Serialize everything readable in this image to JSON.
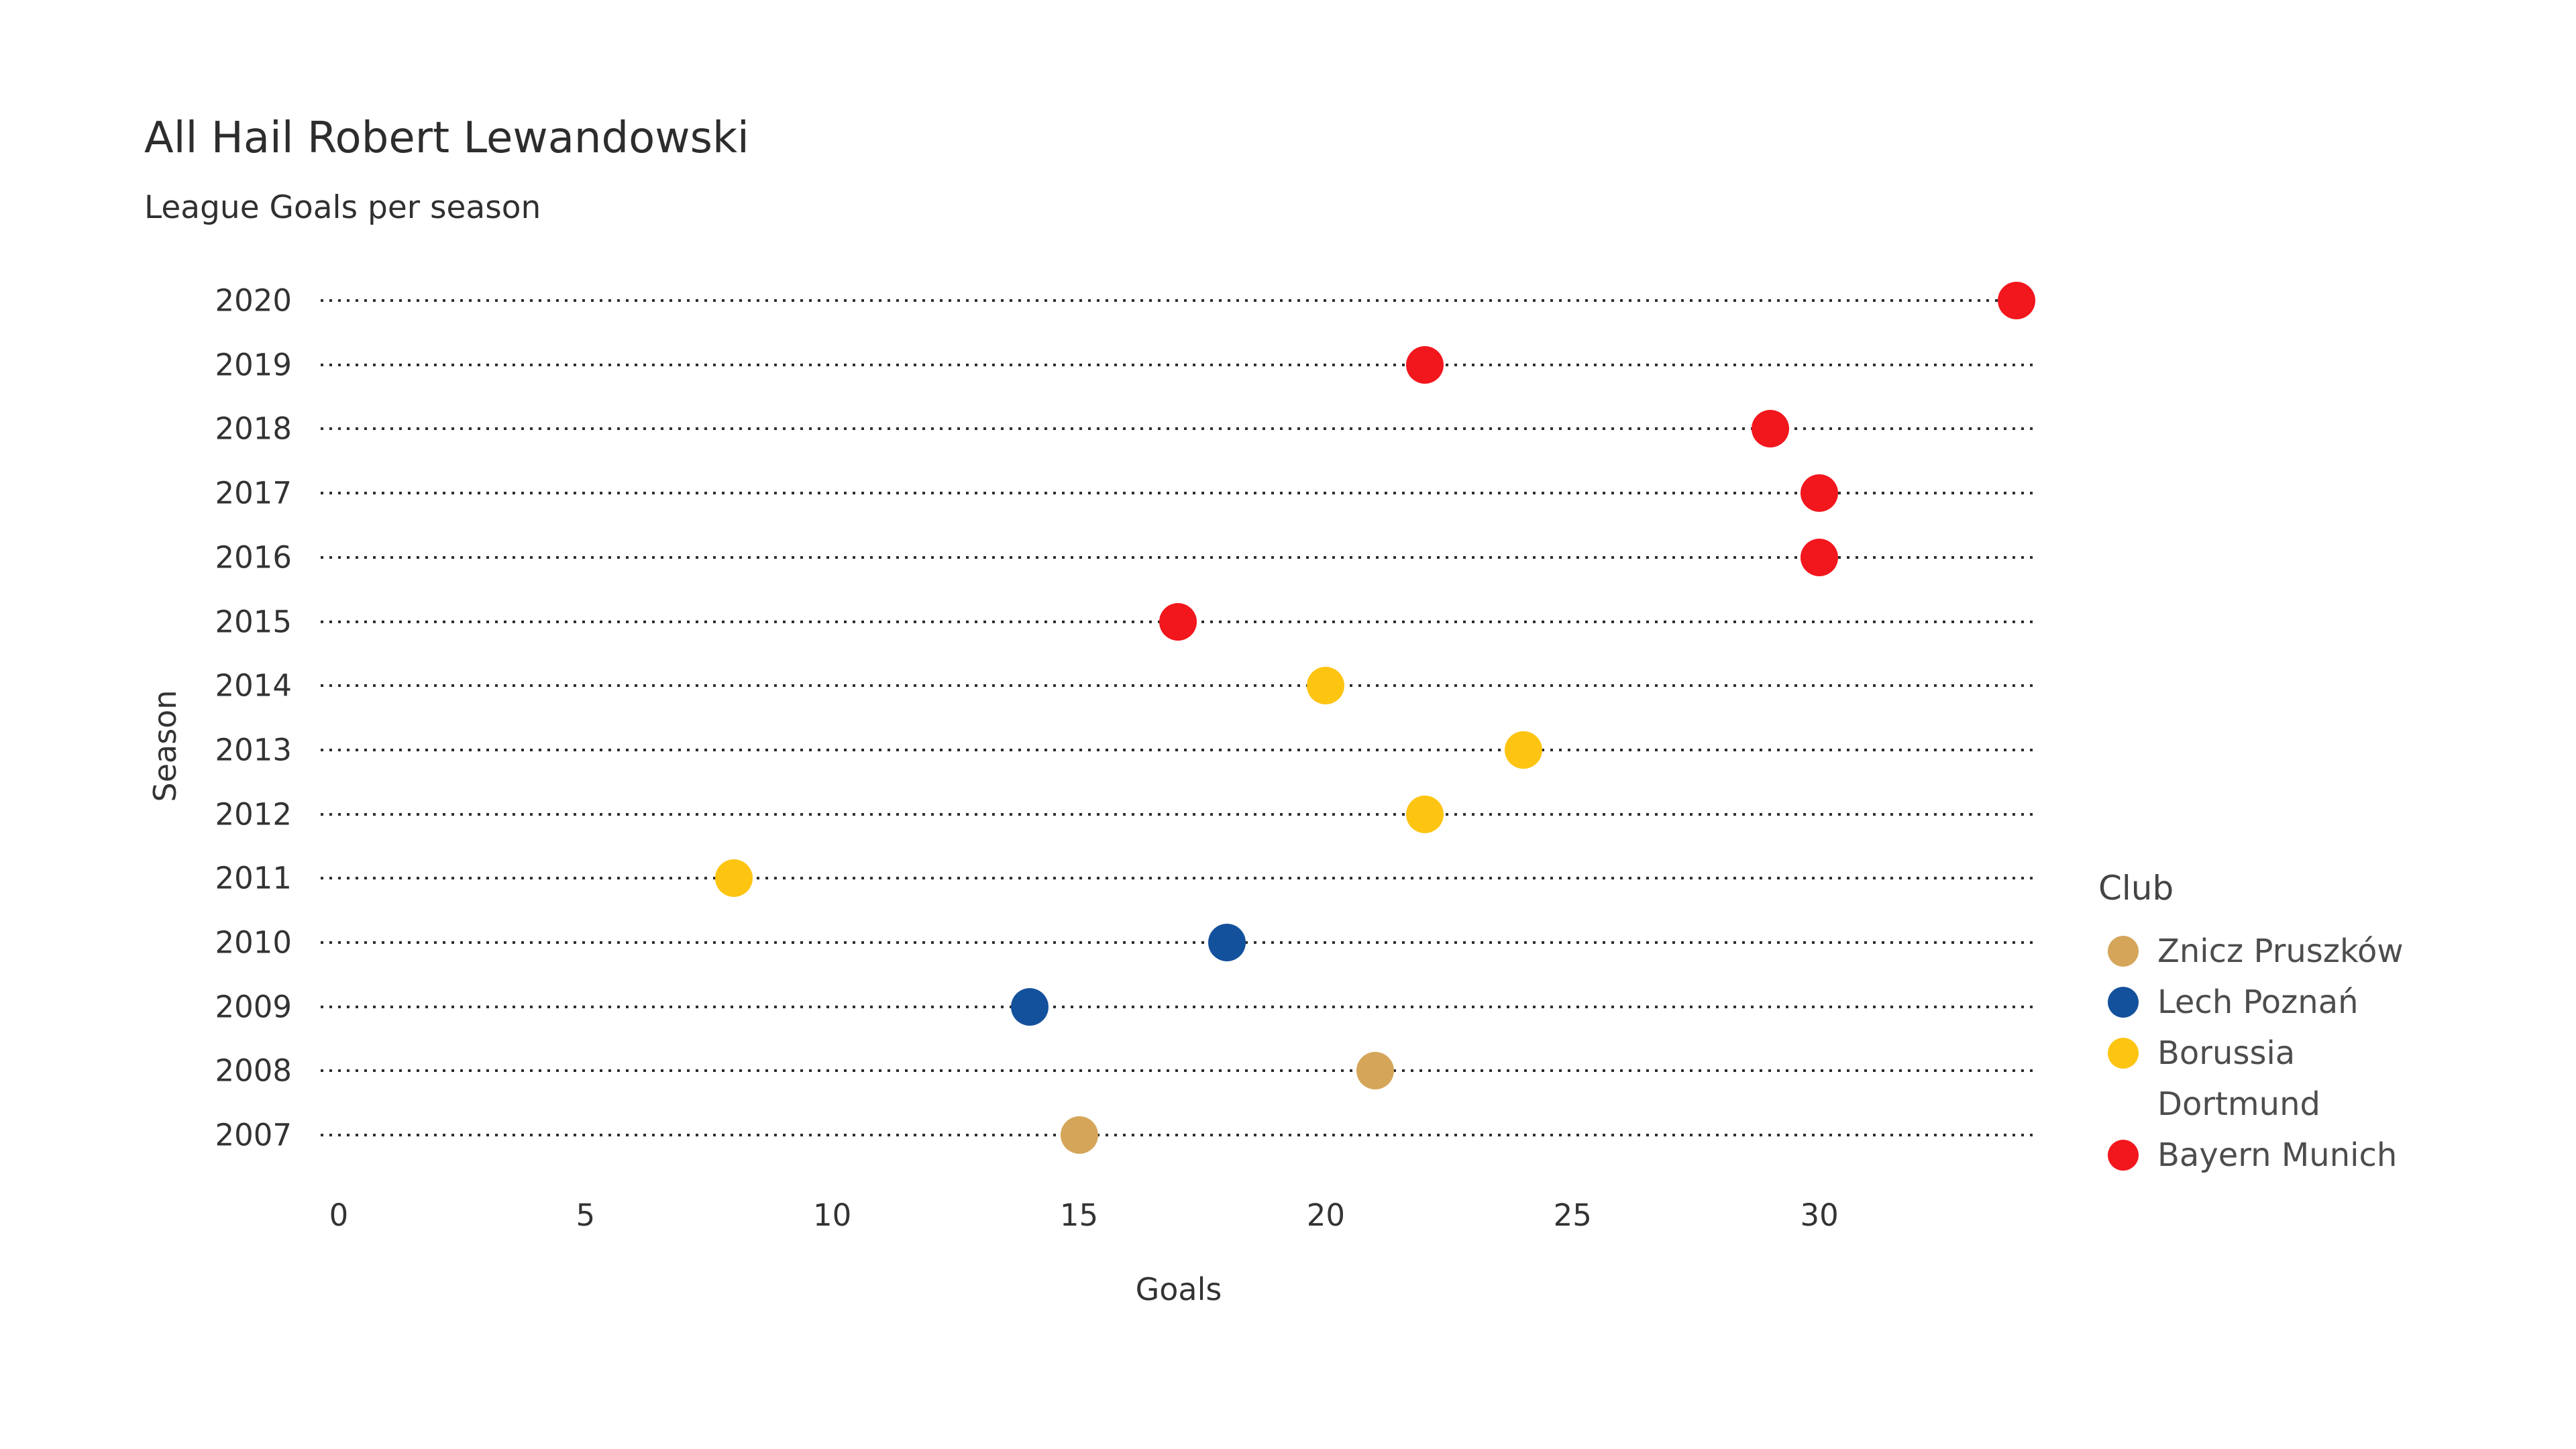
{
  "chart_data": {
    "type": "scatter",
    "title": "All Hail Robert Lewandowski",
    "subtitle": "League Goals per season",
    "xlabel": "Goals",
    "ylabel": "Season",
    "legend_title": "Club",
    "x_ticks": [
      0,
      5,
      10,
      15,
      20,
      25,
      30
    ],
    "xlim": [
      0,
      34.4
    ],
    "y_categories": [
      "2020",
      "2019",
      "2018",
      "2017",
      "2016",
      "2015",
      "2014",
      "2013",
      "2012",
      "2011",
      "2010",
      "2009",
      "2008",
      "2007"
    ],
    "grid": true,
    "legend_position": "right",
    "series": [
      {
        "name": "Znicz Pruszków",
        "color": "#D5A65A",
        "points": [
          {
            "season": "2007",
            "goals": 15
          },
          {
            "season": "2008",
            "goals": 21
          }
        ]
      },
      {
        "name": "Lech Poznań",
        "color": "#14519C",
        "points": [
          {
            "season": "2009",
            "goals": 14
          },
          {
            "season": "2010",
            "goals": 18
          }
        ]
      },
      {
        "name": "Borussia Dortmund",
        "color": "#FDC412",
        "points": [
          {
            "season": "2011",
            "goals": 8
          },
          {
            "season": "2012",
            "goals": 22
          },
          {
            "season": "2013",
            "goals": 24
          },
          {
            "season": "2014",
            "goals": 20
          }
        ]
      },
      {
        "name": "Bayern Munich",
        "color": "#F2161D",
        "points": [
          {
            "season": "2015",
            "goals": 17
          },
          {
            "season": "2016",
            "goals": 30
          },
          {
            "season": "2017",
            "goals": 30
          },
          {
            "season": "2018",
            "goals": 29
          },
          {
            "season": "2019",
            "goals": 22
          },
          {
            "season": "2020",
            "goals": 34
          }
        ]
      }
    ]
  }
}
